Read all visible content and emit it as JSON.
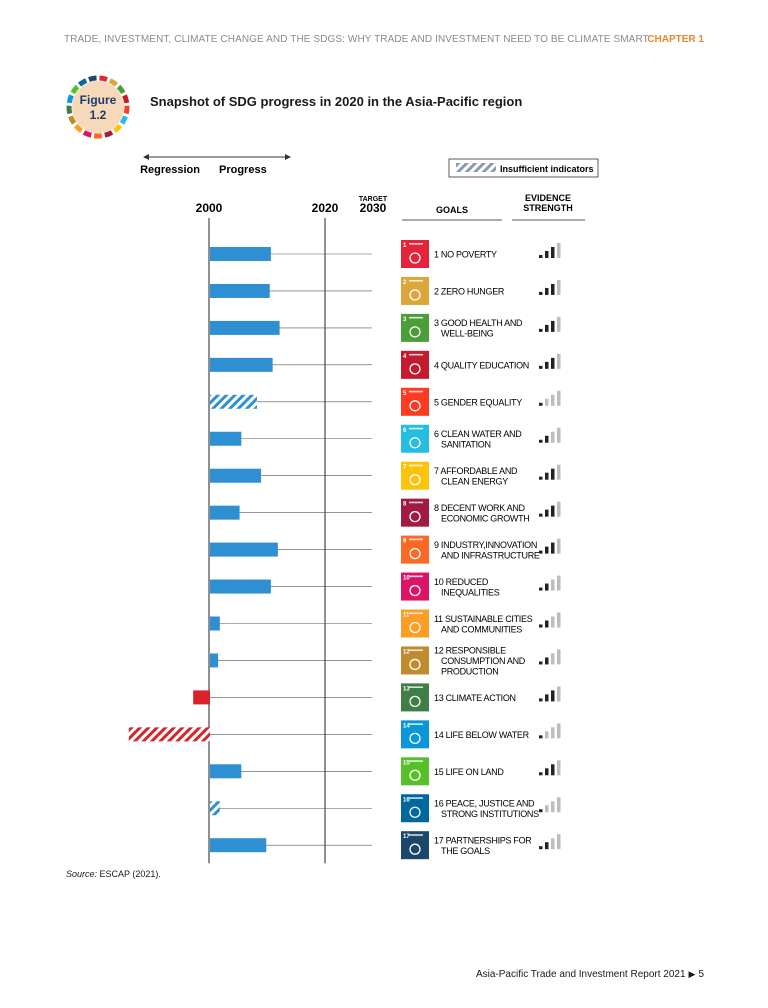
{
  "header": {
    "running_title": "TRADE, INVESTMENT, CLIMATE CHANGE AND THE SDGS: WHY TRADE AND INVESTMENT NEED TO BE CLIMATE SMART",
    "chapter": "CHAPTER 1"
  },
  "figure": {
    "label": "Figure",
    "number": "1.2",
    "title": "Snapshot of SDG progress in 2020 in the Asia-Pacific region"
  },
  "source": {
    "prefix": "Source:",
    "text": "ESCAP (2021)."
  },
  "footer": {
    "text": "Asia-Pacific Trade and Investment Report 2021",
    "page": "5"
  },
  "colors": {
    "progress_bar": "#2f8fd3",
    "regression_bar": "#d8232a",
    "evidence_dark": "#222222",
    "evidence_light": "#bdbdbd",
    "badge_ring": [
      "#e5243b",
      "#dda63a",
      "#4c9f38",
      "#c5192d",
      "#ff3a21",
      "#26bde2",
      "#fcc30b",
      "#a21942",
      "#fd6925",
      "#dd1367",
      "#fd9d24",
      "#bf8b2e",
      "#3f7e44",
      "#0a97d9",
      "#56c02b",
      "#00689d",
      "#19486a"
    ]
  },
  "chart_data": {
    "type": "bar",
    "orientation": "horizontal",
    "title": "Snapshot of SDG progress in 2020 in the Asia-Pacific region",
    "axis_direction_labels": {
      "left": "Regression",
      "right": "Progress"
    },
    "legend": {
      "label": "Insufficient indicators",
      "placement": "top-right"
    },
    "x_ticks": [
      {
        "value": 2000,
        "label": "2000"
      },
      {
        "value": 2020,
        "label": "2020"
      },
      {
        "value": 2030,
        "label": "2030",
        "note": "TARGET"
      }
    ],
    "column_headers": {
      "goals": "GOALS",
      "evidence": "EVIDENCE STRENGTH"
    },
    "progress_unit": "years of progress since 2000",
    "goals": [
      {
        "number": "1",
        "icon_title": "NO POVERTY",
        "label": "1 NO POVERTY",
        "color": "#e5243b",
        "progress": 10.5,
        "insufficient": false,
        "evidence": 3
      },
      {
        "number": "2",
        "icon_title": "ZERO HUNGER",
        "label": "2 ZERO HUNGER",
        "color": "#dda63a",
        "progress": 10.3,
        "insufficient": false,
        "evidence": 3
      },
      {
        "number": "3",
        "icon_title": "GOOD HEALTH AND WELL-BEING",
        "label": "3 GOOD HEALTH AND WELL-BEING",
        "color": "#4c9f38",
        "progress": 12.0,
        "insufficient": false,
        "evidence": 3
      },
      {
        "number": "4",
        "icon_title": "QUALITY EDUCATION",
        "label": "4 QUALITY EDUCATION",
        "color": "#c5192d",
        "progress": 10.8,
        "insufficient": false,
        "evidence": 3
      },
      {
        "number": "5",
        "icon_title": "GENDER EQUALITY",
        "label": "5 GENDER EQUALITY",
        "color": "#ff3a21",
        "progress": 8.1,
        "insufficient": true,
        "evidence": 1
      },
      {
        "number": "6",
        "icon_title": "CLEAN WATER AND SANITATION",
        "label": "6 CLEAN WATER AND SANITATION",
        "color": "#26bde2",
        "progress": 5.4,
        "insufficient": false,
        "evidence": 2
      },
      {
        "number": "7",
        "icon_title": "AFFORDABLE AND CLEAN ENERGY",
        "label": "7 AFFORDABLE AND CLEAN ENERGY",
        "color": "#fcc30b",
        "progress": 8.8,
        "insufficient": false,
        "evidence": 3
      },
      {
        "number": "8",
        "icon_title": "DECENT WORK AND ECONOMIC GROWTH",
        "label": "8 DECENT WORK AND ECONOMIC GROWTH",
        "color": "#a21942",
        "progress": 5.1,
        "insufficient": false,
        "evidence": 3
      },
      {
        "number": "9",
        "icon_title": "INDUSTRY, INNOVATION AND INFRASTRUCTURE",
        "label": "9 INDUSTRY,INNOVATION AND INFRASTRUCTURE",
        "color": "#fd6925",
        "progress": 11.7,
        "insufficient": false,
        "evidence": 3
      },
      {
        "number": "10",
        "icon_title": "REDUCED INEQUALITIES",
        "label": "10 REDUCED INEQUALITIES",
        "color": "#dd1367",
        "progress": 10.5,
        "insufficient": false,
        "evidence": 2
      },
      {
        "number": "11",
        "icon_title": "SUSTAINABLE CITIES AND COMMUNITIES",
        "label": "11 SUSTAINABLE CITIES AND COMMUNITIES",
        "color": "#fd9d24",
        "progress": 1.7,
        "insufficient": false,
        "evidence": 2
      },
      {
        "number": "12",
        "icon_title": "RESPONSIBLE CONSUMPTION AND PRODUCTION",
        "label": "12 RESPONSIBLE CONSUMPTION AND PRODUCTION",
        "color": "#bf8b2e",
        "progress": 1.4,
        "insufficient": false,
        "evidence": 2
      },
      {
        "number": "13",
        "icon_title": "CLIMATE ACTION",
        "label": "13 CLIMATE ACTION",
        "color": "#3f7e44",
        "progress": -2.9,
        "insufficient": false,
        "evidence": 3
      },
      {
        "number": "14",
        "icon_title": "LIFE BELOW WATER",
        "label": "14 LIFE BELOW WATER",
        "color": "#0a97d9",
        "progress": -14.0,
        "insufficient": true,
        "evidence": 1
      },
      {
        "number": "15",
        "icon_title": "LIFE ON LAND",
        "label": "15 LIFE ON LAND",
        "color": "#56c02b",
        "progress": 5.4,
        "insufficient": false,
        "evidence": 3
      },
      {
        "number": "16",
        "icon_title": "PEACE, JUSTICE AND STRONG INSTITUTIONS",
        "label": "16 PEACE, JUSTICE AND STRONG INSTITUTIONS",
        "color": "#00689d",
        "progress": 1.7,
        "insufficient": true,
        "evidence": 1
      },
      {
        "number": "17",
        "icon_title": "PARTNERSHIPS FOR THE GOALS",
        "label": "17 PARTNERSHIPS FOR THE GOALS",
        "color": "#19486a",
        "progress": 9.7,
        "insufficient": false,
        "evidence": 2
      }
    ]
  }
}
